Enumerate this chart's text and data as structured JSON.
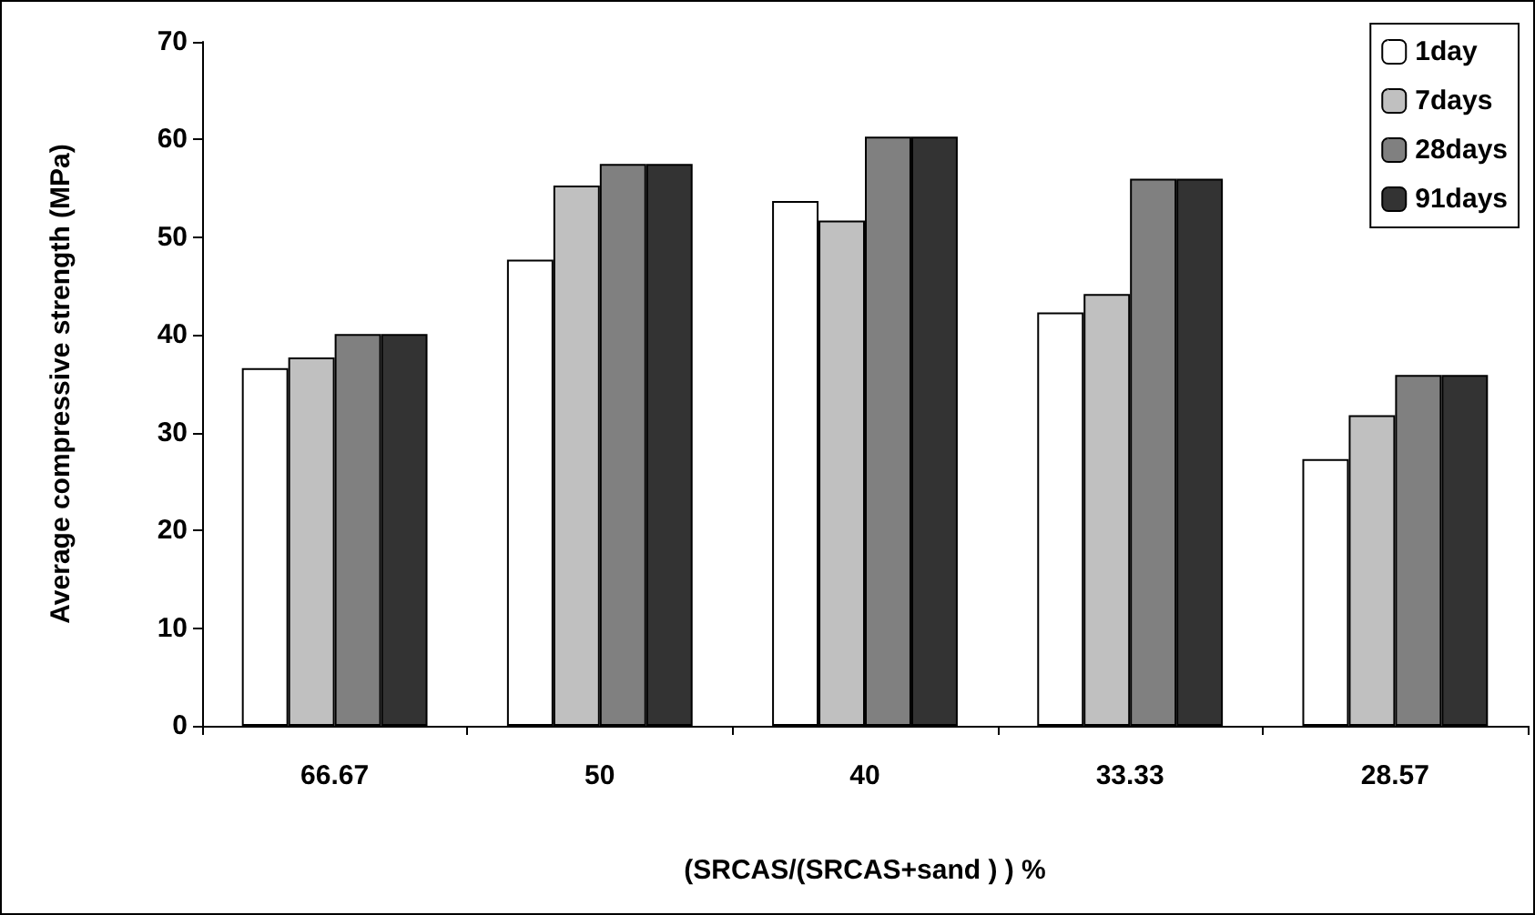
{
  "chart_data": {
    "type": "bar",
    "xlabel": "(SRCAS/(SRCAS+sand ) ) %",
    "ylabel": "Average compressive strength (MPa)",
    "categories": [
      "66.67",
      "50",
      "40",
      "33.33",
      "28.57"
    ],
    "series": [
      {
        "name": "1day",
        "color": "#ffffff",
        "values": [
          36.6,
          47.7,
          53.7,
          42.3,
          27.3
        ]
      },
      {
        "name": "7days",
        "color": "#c0c0c0",
        "values": [
          37.7,
          55.3,
          51.7,
          44.2,
          31.8
        ]
      },
      {
        "name": "28days",
        "color": "#808080",
        "values": [
          40.1,
          57.5,
          60.3,
          56.0,
          35.9
        ]
      },
      {
        "name": "91days",
        "color": "#333333",
        "values": [
          40.1,
          57.5,
          60.3,
          56.0,
          35.9
        ]
      }
    ],
    "ylim": [
      0,
      70
    ],
    "yticks": [
      0,
      10,
      20,
      30,
      40,
      50,
      60,
      70
    ],
    "grid": false,
    "legend": "top right"
  }
}
